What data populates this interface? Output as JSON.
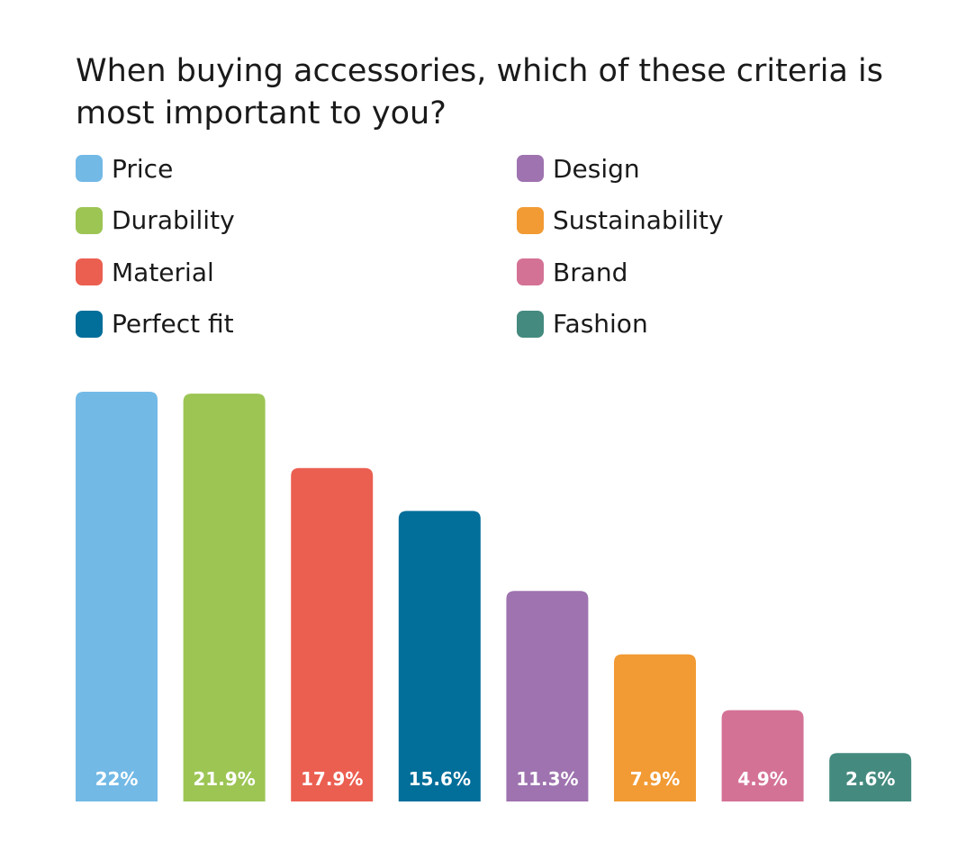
{
  "chart_data": {
    "type": "bar",
    "title": "When buying accessories, which of these criteria is most important to you?",
    "categories": [
      "Price",
      "Durability",
      "Material",
      "Perfect fit",
      "Design",
      "Sustainability",
      "Brand",
      "Fashion"
    ],
    "values": [
      22,
      21.9,
      17.9,
      15.6,
      11.3,
      7.9,
      4.9,
      2.6
    ],
    "value_labels": [
      "22%",
      "21.9%",
      "17.9%",
      "15.6%",
      "11.3%",
      "7.9%",
      "4.9%",
      "2.6%"
    ],
    "colors": [
      "#72b9e6",
      "#9cc554",
      "#eb5f51",
      "#026e9a",
      "#9e73af",
      "#f29a33",
      "#d47296",
      "#448a7f"
    ],
    "unit": "%",
    "ylim": [
      0,
      22
    ],
    "legend_position": "top",
    "xlabel": "",
    "ylabel": ""
  }
}
